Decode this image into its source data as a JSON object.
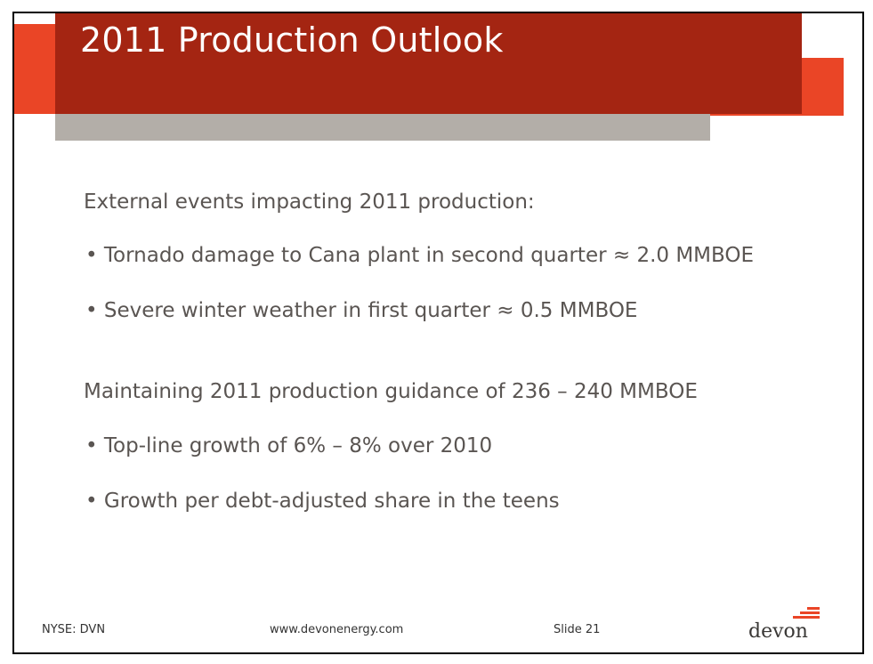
{
  "slide": {
    "title": "2011 Production Outlook",
    "lines": [
      "External events impacting 2011 production:",
      "• Tornado damage to Cana plant in second quarter ≈ 2.0 MMBOE",
      "• Severe winter weather in first quarter ≈ 0.5 MMBOE",
      "Maintaining 2011 production guidance of 236 – 240 MMBOE",
      "• Top-line growth of 6% – 8% over 2010",
      "• Growth per debt-adjusted share in the teens"
    ],
    "footer": {
      "ticker": "NYSE: DVN",
      "website": "www.devonenergy.com",
      "slide_number": "Slide 21",
      "logo_text": "devon"
    }
  },
  "colors": {
    "accent_red": "#a42512",
    "accent_orange": "#ea4526",
    "accent_gray": "#b3aea8",
    "body_text": "#5a5552"
  }
}
